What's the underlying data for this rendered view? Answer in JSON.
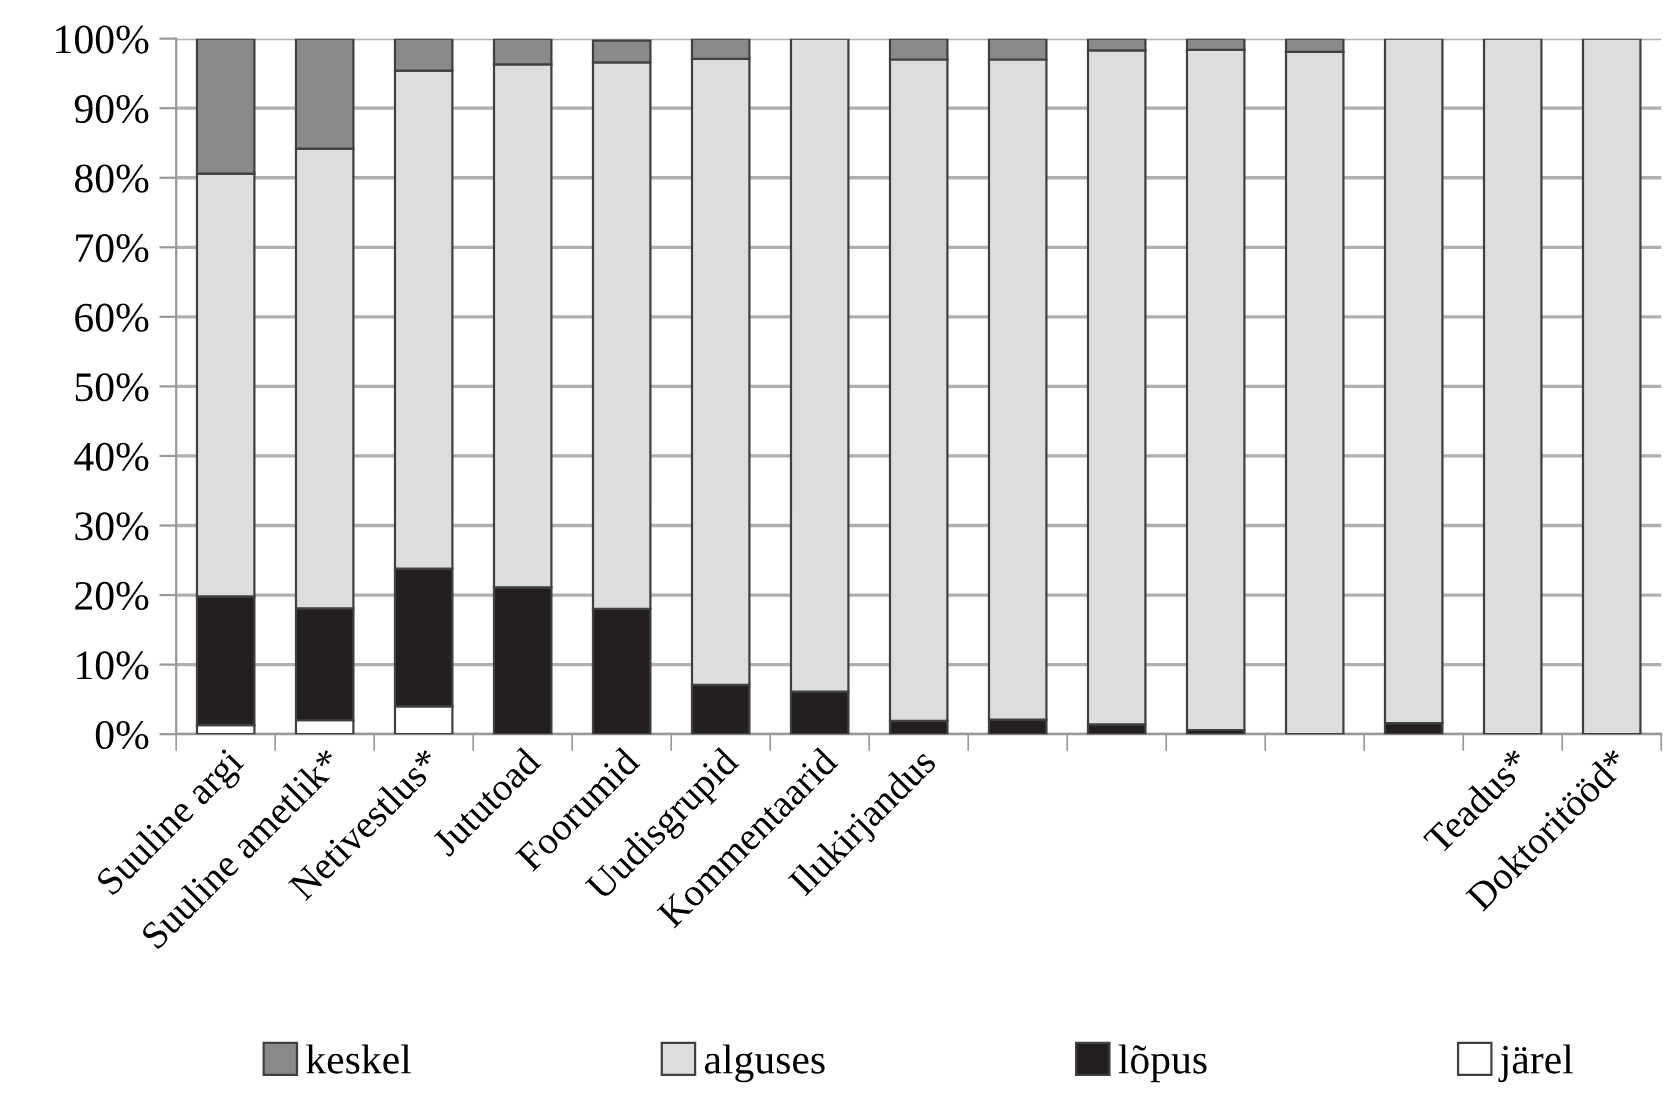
{
  "chart_data": {
    "type": "bar",
    "stacked": true,
    "categories": [
      "Suuline argi",
      "Suuline ametlik*",
      "Netivestlus*",
      "Jututoad",
      "Foorumid",
      "Uudisgrupid",
      "Kommentaarid",
      "Ilukirjandus",
      null,
      null,
      null,
      null,
      null,
      "Teadus*",
      "Doktoritööd*"
    ],
    "series": [
      {
        "name": "järel",
        "color": "#ffffff",
        "values": [
          1.3,
          2.0,
          4.0,
          0,
          null,
          0,
          0,
          0,
          0,
          0,
          0,
          0,
          0,
          0,
          0
        ]
      },
      {
        "name": "lõpus",
        "color": "#231f20",
        "values": [
          18.5,
          16.1,
          19.8,
          21.1,
          18.0,
          7.1,
          6.1,
          1.9,
          2.1,
          1.4,
          0.6,
          0,
          1.6,
          0,
          0
        ]
      },
      {
        "name": "alguses",
        "color": "#dcdddf",
        "values": [
          60.8,
          66.1,
          71.6,
          75.2,
          78.6,
          90.0,
          93.9,
          95.1,
          94.9,
          96.9,
          97.8,
          98.1,
          98.4,
          100,
          100
        ]
      },
      {
        "name": "keskel",
        "color": "#8a8a8a",
        "values": [
          19.4,
          15.8,
          4.6,
          3.7,
          3.1,
          2.9,
          0,
          3.0,
          3.0,
          1.7,
          1.6,
          1.9,
          0,
          0,
          0
        ]
      }
    ],
    "ylim": [
      0,
      100
    ],
    "yticks": [
      {
        "value": 0,
        "label": "0%"
      },
      {
        "value": 10,
        "label": "10%"
      },
      {
        "value": 20,
        "label": "20%"
      },
      {
        "value": 30,
        "label": "30%"
      },
      {
        "value": 40,
        "label": "40%"
      },
      {
        "value": 50,
        "label": "50%"
      },
      {
        "value": 60,
        "label": "60%"
      },
      {
        "value": 70,
        "label": "70%"
      },
      {
        "value": 80,
        "label": "80%"
      },
      {
        "value": 90,
        "label": "90%"
      },
      {
        "value": 100,
        "label": "100%"
      }
    ],
    "grid": "y",
    "legend": "bottom"
  }
}
